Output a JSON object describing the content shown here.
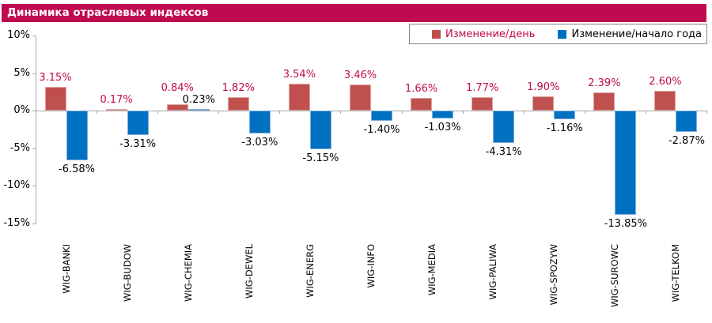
{
  "header": {
    "title": "Динамика отраслевых индексов"
  },
  "colors": {
    "header_bg": "#C00A50",
    "header_text": "#FFFFFF",
    "axis": "#A6A6A6",
    "legend_border": "#848484",
    "background": "#FFFFFF"
  },
  "legend": {
    "items": [
      {
        "label": "Изменение/день",
        "swatch_color": "#C0504D",
        "text_color": "#C00A50"
      },
      {
        "label": "Изменение/начало года",
        "swatch_color": "#0070C0",
        "text_color": "#000000"
      }
    ]
  },
  "chart_data": {
    "type": "bar",
    "title": "Динамика отраслевых индексов",
    "categories": [
      "WIG-BANKI",
      "WIG-BUDOW",
      "WIG-CHEMIA",
      "WIG-DEWEL",
      "WIG-ENERG",
      "WIG-INFO",
      "WIG-MEDIA",
      "WIG-PALIWA",
      "WIG-SPOZYW",
      "WIG-SUROWC",
      "WIG-TELKOM"
    ],
    "series": [
      {
        "name": "Изменение/день",
        "color": "#C0504D",
        "border_color": "#DCA5A3",
        "label_color": "#C00A50",
        "values": [
          3.15,
          0.17,
          0.84,
          1.82,
          3.54,
          3.46,
          1.66,
          1.77,
          1.9,
          2.39,
          2.6
        ],
        "labels": [
          "3.15%",
          "0.17%",
          "0.84%",
          "1.82%",
          "3.54%",
          "3.46%",
          "1.66%",
          "1.77%",
          "1.90%",
          "2.39%",
          "2.60%"
        ]
      },
      {
        "name": "Изменение/начало года",
        "color": "#0070C0",
        "border_color": "#7FAEDC",
        "label_color": "#000000",
        "values": [
          -6.58,
          -3.31,
          0.23,
          -3.03,
          -5.15,
          -1.4,
          -1.03,
          -4.31,
          -1.16,
          -13.85,
          -2.87
        ],
        "labels": [
          "-6.58%",
          "-3.31%",
          "0.23%",
          "-3.03%",
          "-5.15%",
          "-1.40%",
          "-1.03%",
          "-4.31%",
          "-1.16%",
          "-13.85%",
          "-2.87%"
        ]
      }
    ],
    "y_axis": {
      "min": -15,
      "max": 10,
      "tick_values": [
        10,
        5,
        0,
        -5,
        -10,
        -15
      ],
      "tick_labels": [
        "10%",
        "5%",
        "0%",
        "-5%",
        "-10%",
        "-15%"
      ]
    },
    "grid": false,
    "legend_position": "top-right",
    "label_format": "0.00%"
  }
}
